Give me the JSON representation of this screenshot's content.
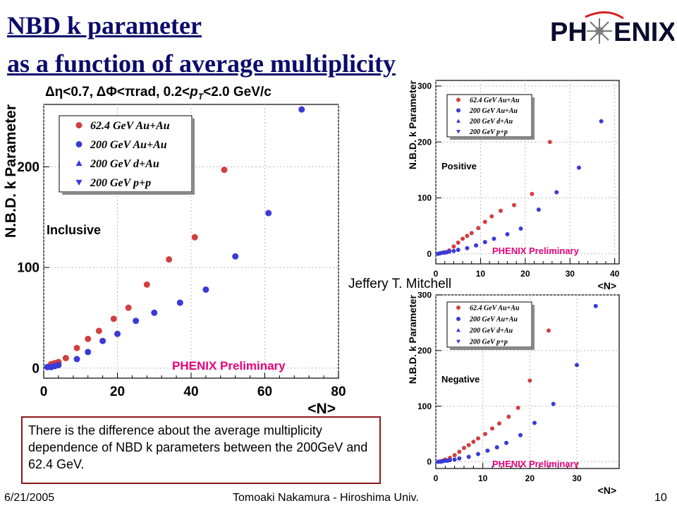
{
  "slide": {
    "title_line1": "NBD k parameter",
    "title_line2": "as a function of average multiplicity",
    "logo_text_left": "PH",
    "logo_text_right": "ENIX",
    "author": "Jeffery T. Mitchell",
    "note": "There is the difference about the average multiplicity dependence of NBD k parameters between the 200GeV and 62.4 GeV.",
    "footer_date": "6/21/2005",
    "footer_author": "Tomoaki Nakamura - Hiroshima Univ.",
    "footer_page": "10",
    "colors": {
      "title": "#0b0b6b",
      "preliminary": "#e8007a",
      "red_series": "#d04040",
      "blue_series": "#3a3ad8",
      "note_border": "#8b1a1a"
    }
  },
  "chart_data": [
    {
      "type": "scatter",
      "panel": "Inclusive",
      "header": "Δη<0.7, ΔΦ<πrad, 0.2<pT<2.0 GeV/c",
      "ylabel": "N.B.D. k Parameter",
      "xlabel": "<N>",
      "stamp": "PHENIX Preliminary",
      "xlim": [
        0,
        80
      ],
      "ylim": [
        -10,
        262
      ],
      "xticks": [
        0,
        20,
        40,
        60,
        80
      ],
      "yticks": [
        0,
        100,
        200
      ],
      "grid": true,
      "legend_position": "top-left",
      "series": [
        {
          "name": "62.4 GeV Au+Au",
          "marker": "circle",
          "color": "#d04040",
          "x": [
            1,
            2,
            3,
            4,
            6,
            9,
            12,
            15,
            19,
            23,
            28,
            34,
            41,
            49
          ],
          "y": [
            1,
            4,
            5,
            6,
            10,
            20,
            29,
            37,
            49,
            60,
            83,
            108,
            130,
            197
          ]
        },
        {
          "name": "200 GeV Au+Au",
          "marker": "circle",
          "color": "#3a3ad8",
          "x": [
            1,
            2,
            3,
            4,
            9,
            12,
            16,
            20,
            25,
            30,
            37,
            44,
            52,
            61,
            70
          ],
          "y": [
            1,
            1,
            2,
            3,
            9,
            16,
            27,
            34,
            47,
            55,
            65,
            78,
            111,
            154,
            257
          ]
        },
        {
          "name": "200 GeV d+Au",
          "marker": "triangle-up",
          "color": "#3a3ad8",
          "x": [],
          "y": []
        },
        {
          "name": "200 GeV p+p",
          "marker": "triangle-down",
          "color": "#3a3ad8",
          "x": [],
          "y": []
        }
      ]
    },
    {
      "type": "scatter",
      "panel": "Positive",
      "ylabel": "N.B.D. k Parameter",
      "xlabel": "<N>",
      "stamp": "PHENIX Preliminary",
      "xlim": [
        0,
        41
      ],
      "ylim": [
        -18,
        310
      ],
      "xticks": [
        0,
        10,
        20,
        30,
        40
      ],
      "yticks": [
        0,
        100,
        200,
        300
      ],
      "grid": true,
      "legend_position": "top-left",
      "series": [
        {
          "name": "62.4 GeV Au+Au",
          "marker": "circle",
          "color": "#d04040",
          "x": [
            1,
            2,
            3,
            4,
            5,
            6,
            7,
            8,
            9.5,
            11,
            12.5,
            14.5,
            17.5,
            21.5,
            25.5
          ],
          "y": [
            1,
            3,
            6,
            13,
            20,
            27,
            32,
            37,
            46,
            57,
            67,
            77,
            87,
            107,
            200
          ]
        },
        {
          "name": "200 GeV Au+Au",
          "marker": "circle",
          "color": "#3a3ad8",
          "x": [
            0.5,
            1,
            1.5,
            2,
            2.5,
            3,
            4,
            5,
            7,
            9,
            11,
            13,
            16,
            19,
            23,
            27,
            32,
            37
          ],
          "y": [
            0,
            1,
            2,
            2,
            3,
            4,
            5,
            7,
            10,
            15,
            21,
            27,
            35,
            45,
            79,
            110,
            154,
            237
          ]
        },
        {
          "name": "200 GeV d+Au",
          "marker": "triangle-up",
          "color": "#3a3ad8",
          "x": [],
          "y": []
        },
        {
          "name": "200 GeV p+p",
          "marker": "triangle-down",
          "color": "#3a3ad8",
          "x": [],
          "y": []
        }
      ]
    },
    {
      "type": "scatter",
      "panel": "Negative",
      "ylabel": "N.B.D. k Parameter",
      "xlabel": "<N>",
      "stamp": "PHENIX Preliminary",
      "xlim": [
        0,
        39
      ],
      "ylim": [
        -12,
        300
      ],
      "xticks": [
        0,
        10,
        20,
        30
      ],
      "yticks": [
        0,
        100,
        200,
        300
      ],
      "grid": true,
      "legend_position": "top-left",
      "series": [
        {
          "name": "62.4 GeV Au+Au",
          "marker": "circle",
          "color": "#d04040",
          "x": [
            1,
            1.5,
            2,
            3,
            4,
            5,
            6,
            7,
            8,
            9,
            10.5,
            12,
            13.5,
            15.5,
            17.5,
            20,
            24
          ],
          "y": [
            1,
            2,
            4,
            7,
            12,
            18,
            25,
            30,
            36,
            42,
            50,
            60,
            69,
            81,
            97,
            146,
            236
          ]
        },
        {
          "name": "200 GeV Au+Au",
          "marker": "circle",
          "color": "#3a3ad8",
          "x": [
            0.5,
            1,
            1.5,
            2,
            2.5,
            3,
            4,
            5,
            7,
            9,
            11,
            13,
            15,
            18,
            21,
            25,
            30,
            34
          ],
          "y": [
            0,
            0,
            1,
            2,
            2,
            3,
            4,
            6,
            9,
            14,
            20,
            26,
            34,
            48,
            70,
            104,
            174,
            280
          ]
        },
        {
          "name": "200 GeV d+Au",
          "marker": "triangle-up",
          "color": "#3a3ad8",
          "x": [],
          "y": []
        },
        {
          "name": "200 GeV p+p",
          "marker": "triangle-down",
          "color": "#3a3ad8",
          "x": [],
          "y": []
        }
      ]
    }
  ]
}
